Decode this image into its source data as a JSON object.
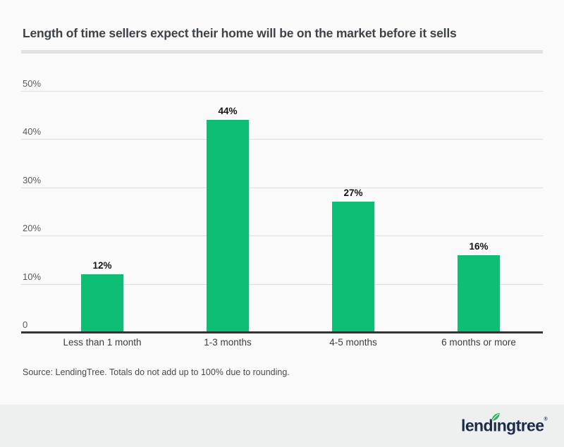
{
  "header": {
    "title": "Length of time sellers expect their home will be on the market before it sells"
  },
  "chart_data": {
    "type": "bar",
    "title": "Length of time sellers expect their home will be on the market before it sells",
    "categories": [
      "Less than 1 month",
      "1-3 months",
      "4-5 months",
      "6 months or more"
    ],
    "values": [
      12,
      44,
      27,
      16
    ],
    "value_labels": [
      "12%",
      "44%",
      "27%",
      "16%"
    ],
    "xlabel": "",
    "ylabel": "",
    "ylim": [
      0,
      50
    ],
    "y_ticks": [
      {
        "value": 0,
        "label": "0"
      },
      {
        "value": 10,
        "label": "10%"
      },
      {
        "value": 20,
        "label": "20%"
      },
      {
        "value": 30,
        "label": "30%"
      },
      {
        "value": 40,
        "label": "40%"
      },
      {
        "value": 50,
        "label": "50%"
      }
    ],
    "grid": true,
    "legend_position": "none",
    "bar_color": "#0fbe75"
  },
  "source_note": "Source: LendingTree. Totals do not add up to 100% due to rounding.",
  "footer": {
    "brand_prefix": "lend",
    "brand_i": "ı",
    "brand_suffix": "ngtree",
    "registered_mark": "®",
    "leaf_icon": "leaf-icon"
  },
  "colors": {
    "background": "#fafafa",
    "footer_background": "#eef0f0",
    "bar_green": "#0fbe75",
    "logo_navy": "#1c2b4a",
    "leaf_green": "#2cb464",
    "gridline": "#dddddd",
    "axis": "#333333",
    "title_text": "#3f4347"
  }
}
